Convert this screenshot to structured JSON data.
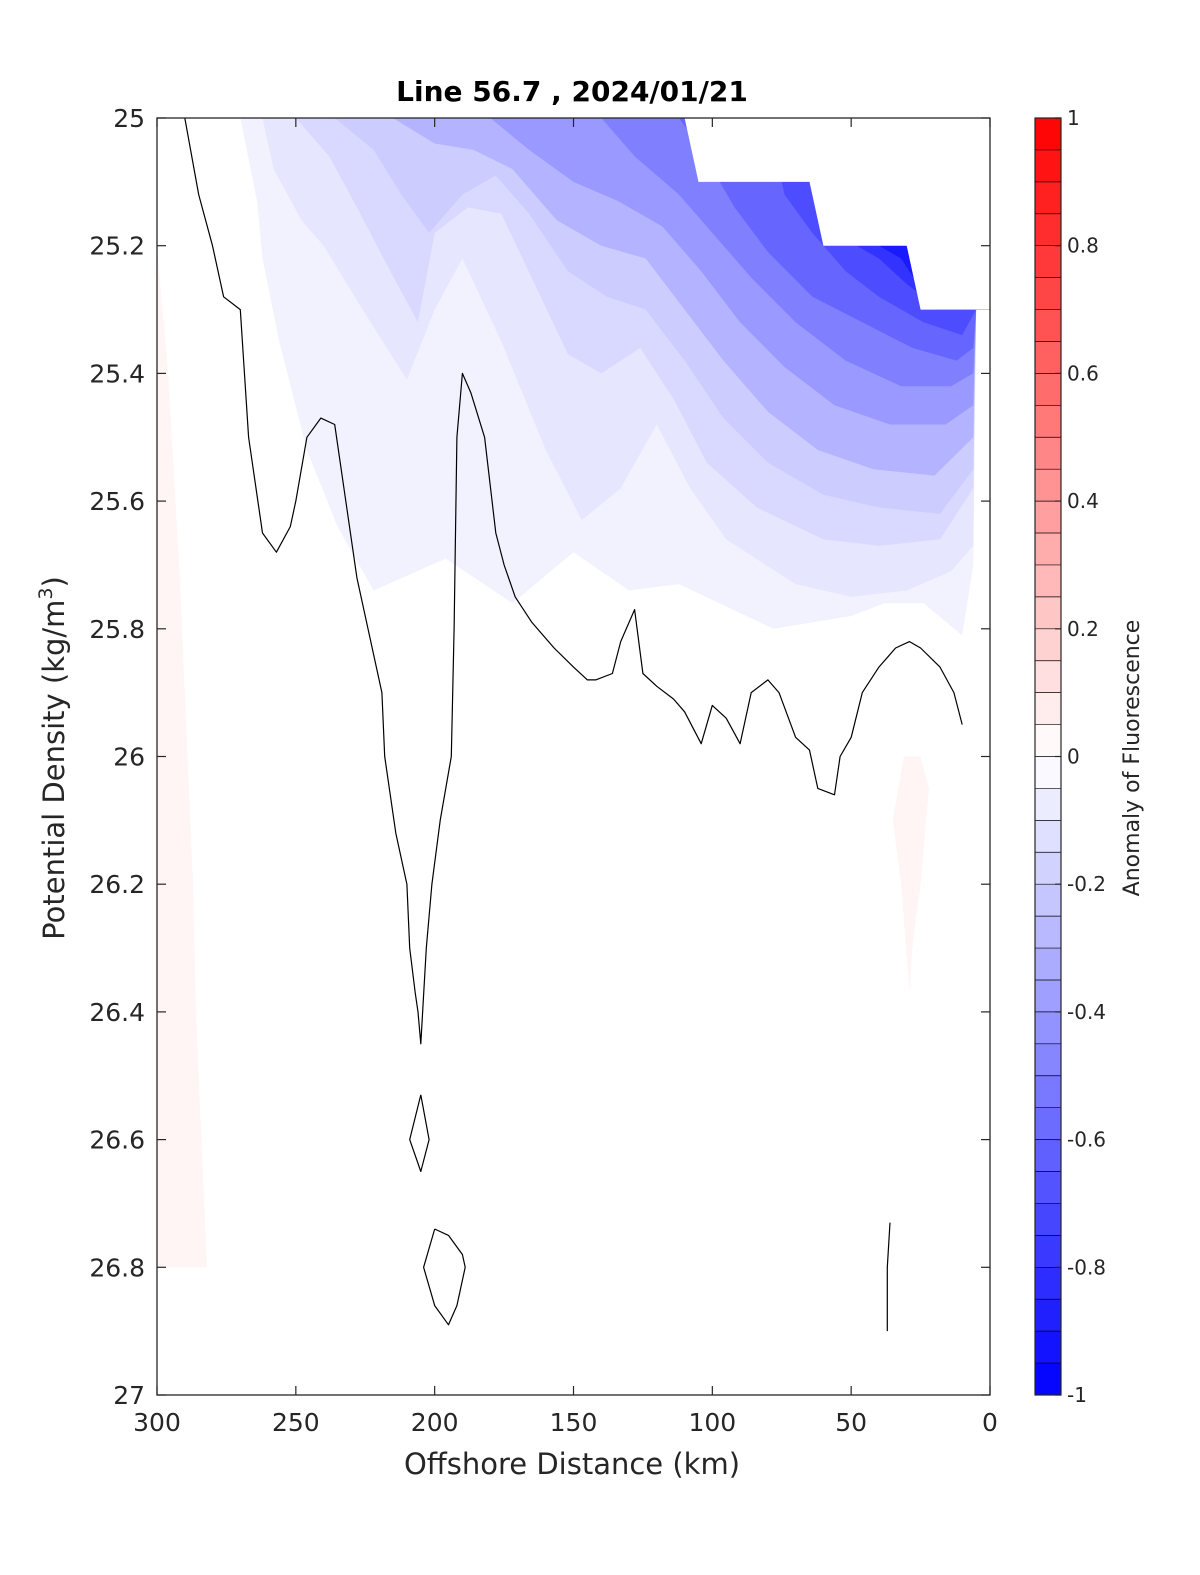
{
  "chart_data": {
    "type": "contour",
    "title": "Line 56.7 , 2024/01/21",
    "xlabel": "Offshore Distance (km)",
    "ylabel_main": "Potential Density (kg/m",
    "ylabel_sup": "3",
    "ylabel_close": ")",
    "colorbar_label": "Anomaly of Fluorescence",
    "xlim": [
      300,
      0
    ],
    "x_reversed": true,
    "ylim": [
      25,
      27
    ],
    "y_reversed": true,
    "x_ticks": [
      300,
      250,
      200,
      150,
      100,
      50,
      0
    ],
    "x_tick_labels": [
      "300",
      "250",
      "200",
      "150",
      "100",
      "50",
      "0"
    ],
    "y_ticks": [
      25,
      25.2,
      25.4,
      25.6,
      25.8,
      26,
      26.2,
      26.4,
      26.6,
      26.8,
      27
    ],
    "y_tick_labels": [
      "25",
      "25.2",
      "25.4",
      "25.6",
      "25.8",
      "26",
      "26.2",
      "26.4",
      "26.6",
      "26.8",
      "27"
    ],
    "colorbar": {
      "range": [
        -1,
        1
      ],
      "levels": 40,
      "ticks": [
        1,
        0.8,
        0.6,
        0.4,
        0.2,
        0,
        -0.2,
        -0.4,
        -0.6,
        -0.8,
        -1
      ],
      "tick_labels": [
        "1",
        "0.8",
        "0.6",
        "0.4",
        "0.2",
        "0",
        "-0.2",
        "-0.4",
        "-0.6",
        "-0.8",
        "-1"
      ],
      "colors": {
        "low": "#0000ff",
        "mid": "#ffffff",
        "high": "#ff0000"
      }
    },
    "no_data_region": {
      "boundary": [
        [
          110,
          25.0
        ],
        [
          105,
          25.1
        ],
        [
          65,
          25.1
        ],
        [
          60,
          25.2
        ],
        [
          30,
          25.2
        ],
        [
          25,
          25.3
        ],
        [
          5,
          25.3
        ],
        [
          0,
          25.3
        ],
        [
          0,
          25.0
        ]
      ]
    },
    "negative_fill_layers": [
      {
        "value": -0.05,
        "boundary": [
          [
            270,
            25.0
          ],
          [
            264,
            25.13
          ],
          [
            262,
            25.22
          ],
          [
            256,
            25.35
          ],
          [
            246,
            25.52
          ],
          [
            235,
            25.64
          ],
          [
            222,
            25.74
          ],
          [
            196,
            25.69
          ],
          [
            172,
            25.76
          ],
          [
            150,
            25.68
          ],
          [
            130,
            25.74
          ],
          [
            112,
            25.73
          ],
          [
            78,
            25.8
          ],
          [
            50,
            25.78
          ],
          [
            38,
            25.76
          ],
          [
            24,
            25.76
          ],
          [
            10,
            25.81
          ],
          [
            6,
            25.7
          ],
          [
            5,
            25.3
          ],
          [
            0,
            25.3
          ],
          [
            0,
            25.0
          ]
        ]
      },
      {
        "value": -0.1,
        "boundary": [
          [
            262,
            25.0
          ],
          [
            258,
            25.08
          ],
          [
            248,
            25.16
          ],
          [
            240,
            25.2
          ],
          [
            226,
            25.3
          ],
          [
            210,
            25.41
          ],
          [
            200,
            25.3
          ],
          [
            190,
            25.22
          ],
          [
            176,
            25.35
          ],
          [
            160,
            25.52
          ],
          [
            147,
            25.63
          ],
          [
            133,
            25.58
          ],
          [
            120,
            25.48
          ],
          [
            108,
            25.58
          ],
          [
            95,
            25.66
          ],
          [
            70,
            25.73
          ],
          [
            50,
            25.75
          ],
          [
            30,
            25.74
          ],
          [
            14,
            25.71
          ],
          [
            6,
            25.67
          ],
          [
            5,
            25.3
          ],
          [
            0,
            25.3
          ],
          [
            0,
            25.0
          ]
        ]
      },
      {
        "value": -0.15,
        "boundary": [
          [
            250,
            25.0
          ],
          [
            238,
            25.06
          ],
          [
            228,
            25.14
          ],
          [
            216,
            25.24
          ],
          [
            206,
            25.32
          ],
          [
            200,
            25.18
          ],
          [
            188,
            25.14
          ],
          [
            176,
            25.15
          ],
          [
            164,
            25.26
          ],
          [
            152,
            25.37
          ],
          [
            140,
            25.4
          ],
          [
            126,
            25.36
          ],
          [
            114,
            25.44
          ],
          [
            102,
            25.54
          ],
          [
            84,
            25.61
          ],
          [
            60,
            25.66
          ],
          [
            40,
            25.67
          ],
          [
            18,
            25.66
          ],
          [
            6,
            25.58
          ],
          [
            5,
            25.3
          ],
          [
            0,
            25.3
          ],
          [
            0,
            25.0
          ]
        ]
      },
      {
        "value": -0.2,
        "boundary": [
          [
            236,
            25.0
          ],
          [
            222,
            25.05
          ],
          [
            212,
            25.12
          ],
          [
            202,
            25.18
          ],
          [
            190,
            25.12
          ],
          [
            178,
            25.09
          ],
          [
            166,
            25.15
          ],
          [
            152,
            25.24
          ],
          [
            138,
            25.28
          ],
          [
            124,
            25.3
          ],
          [
            110,
            25.38
          ],
          [
            96,
            25.47
          ],
          [
            80,
            25.54
          ],
          [
            60,
            25.59
          ],
          [
            40,
            25.61
          ],
          [
            18,
            25.62
          ],
          [
            6,
            25.55
          ],
          [
            5,
            25.3
          ],
          [
            0,
            25.3
          ],
          [
            0,
            25.0
          ]
        ]
      },
      {
        "value": -0.3,
        "boundary": [
          [
            215,
            25.0
          ],
          [
            200,
            25.04
          ],
          [
            186,
            25.05
          ],
          [
            172,
            25.08
          ],
          [
            156,
            25.16
          ],
          [
            140,
            25.2
          ],
          [
            124,
            25.22
          ],
          [
            110,
            25.3
          ],
          [
            96,
            25.38
          ],
          [
            80,
            25.46
          ],
          [
            62,
            25.52
          ],
          [
            42,
            25.55
          ],
          [
            20,
            25.56
          ],
          [
            6,
            25.5
          ],
          [
            5,
            25.3
          ],
          [
            0,
            25.3
          ],
          [
            0,
            25.0
          ]
        ]
      },
      {
        "value": -0.4,
        "boundary": [
          [
            180,
            25.0
          ],
          [
            166,
            25.05
          ],
          [
            150,
            25.1
          ],
          [
            134,
            25.13
          ],
          [
            118,
            25.17
          ],
          [
            104,
            25.24
          ],
          [
            90,
            25.32
          ],
          [
            74,
            25.39
          ],
          [
            56,
            25.45
          ],
          [
            36,
            25.48
          ],
          [
            16,
            25.48
          ],
          [
            6,
            25.45
          ],
          [
            5,
            25.3
          ],
          [
            0,
            25.3
          ],
          [
            0,
            25.0
          ]
        ]
      },
      {
        "value": -0.5,
        "boundary": [
          [
            140,
            25.0
          ],
          [
            128,
            25.06
          ],
          [
            112,
            25.12
          ],
          [
            100,
            25.18
          ],
          [
            86,
            25.25
          ],
          [
            70,
            25.32
          ],
          [
            52,
            25.38
          ],
          [
            32,
            25.42
          ],
          [
            14,
            25.42
          ],
          [
            6,
            25.4
          ],
          [
            5,
            25.3
          ],
          [
            0,
            25.3
          ],
          [
            0,
            25.0
          ]
        ]
      },
      {
        "value": -0.6,
        "boundary": [
          [
            112,
            25.0
          ],
          [
            104,
            25.05
          ],
          [
            92,
            25.14
          ],
          [
            80,
            25.21
          ],
          [
            64,
            25.28
          ],
          [
            46,
            25.32
          ],
          [
            28,
            25.36
          ],
          [
            12,
            25.38
          ],
          [
            6,
            25.36
          ],
          [
            5,
            25.3
          ],
          [
            0,
            25.3
          ],
          [
            0,
            25.0
          ]
        ]
      },
      {
        "value": -0.7,
        "boundary": [
          [
            80,
            25.0
          ],
          [
            74,
            25.12
          ],
          [
            64,
            25.18
          ],
          [
            52,
            25.24
          ],
          [
            40,
            25.28
          ],
          [
            24,
            25.32
          ],
          [
            10,
            25.34
          ],
          [
            5,
            25.3
          ],
          [
            0,
            25.3
          ],
          [
            0,
            25.0
          ]
        ]
      },
      {
        "value": -0.8,
        "boundary": [
          [
            56,
            25.0
          ],
          [
            48,
            25.2
          ],
          [
            40,
            25.22
          ],
          [
            30,
            25.26
          ],
          [
            18,
            25.3
          ],
          [
            5,
            25.3
          ],
          [
            0,
            25.3
          ],
          [
            0,
            25.0
          ]
        ]
      },
      {
        "value": -0.9,
        "boundary": [
          [
            46,
            25.0
          ],
          [
            40,
            25.2
          ],
          [
            32,
            25.22
          ],
          [
            26,
            25.26
          ],
          [
            20,
            25.3
          ],
          [
            0,
            25.3
          ],
          [
            0,
            25.0
          ]
        ]
      }
    ],
    "positive_fill_layers": [
      {
        "value": 0.04,
        "boundary": [
          [
            300,
            25.2
          ],
          [
            296,
            25.4
          ],
          [
            292,
            25.7
          ],
          [
            289,
            26.0
          ],
          [
            287,
            26.2
          ],
          [
            286,
            26.4
          ],
          [
            284,
            26.6
          ],
          [
            283,
            26.7
          ],
          [
            282,
            26.8
          ],
          [
            300,
            26.8
          ]
        ]
      },
      {
        "value": 0.04,
        "boundary": [
          [
            31,
            26.0
          ],
          [
            25,
            26.0
          ],
          [
            22,
            26.05
          ],
          [
            25,
            26.2
          ],
          [
            28,
            26.3
          ],
          [
            29,
            26.37
          ],
          [
            32,
            26.2
          ],
          [
            35,
            26.1
          ]
        ]
      }
    ],
    "zero_contours": [
      {
        "points": [
          [
            290,
            25.0
          ],
          [
            285,
            25.12
          ],
          [
            280,
            25.2
          ],
          [
            276,
            25.28
          ],
          [
            270,
            25.3
          ],
          [
            267,
            25.5
          ],
          [
            262,
            25.65
          ],
          [
            257,
            25.68
          ],
          [
            252,
            25.64
          ],
          [
            250,
            25.6
          ],
          [
            246,
            25.5
          ],
          [
            241,
            25.47
          ],
          [
            236,
            25.48
          ],
          [
            232,
            25.6
          ],
          [
            228,
            25.72
          ],
          [
            224,
            25.8
          ],
          [
            219,
            25.9
          ],
          [
            218,
            26.0
          ],
          [
            214,
            26.12
          ],
          [
            210,
            26.2
          ],
          [
            209,
            26.3
          ],
          [
            207,
            26.37
          ],
          [
            206,
            26.4
          ],
          [
            205,
            26.45
          ],
          [
            203,
            26.3
          ],
          [
            201,
            26.2
          ],
          [
            198,
            26.1
          ],
          [
            194,
            26.0
          ],
          [
            193,
            25.8
          ],
          [
            192,
            25.5
          ],
          [
            190,
            25.4
          ],
          [
            187,
            25.43
          ],
          [
            182,
            25.5
          ],
          [
            178,
            25.65
          ],
          [
            175,
            25.7
          ],
          [
            171,
            25.75
          ],
          [
            165,
            25.79
          ],
          [
            157,
            25.83
          ],
          [
            150,
            25.86
          ],
          [
            145,
            25.88
          ],
          [
            142,
            25.88
          ],
          [
            136,
            25.87
          ],
          [
            133,
            25.82
          ],
          [
            128,
            25.77
          ],
          [
            125,
            25.87
          ],
          [
            120,
            25.89
          ],
          [
            114,
            25.91
          ],
          [
            110,
            25.93
          ],
          [
            104,
            25.98
          ],
          [
            100,
            25.92
          ],
          [
            95,
            25.94
          ],
          [
            90,
            25.98
          ],
          [
            86,
            25.9
          ],
          [
            80,
            25.88
          ],
          [
            76,
            25.9
          ],
          [
            70,
            25.97
          ],
          [
            65,
            25.99
          ],
          [
            62,
            26.05
          ],
          [
            56,
            26.06
          ],
          [
            54,
            26.0
          ],
          [
            50,
            25.97
          ],
          [
            46,
            25.9
          ],
          [
            40,
            25.86
          ],
          [
            34,
            25.83
          ],
          [
            29,
            25.82
          ],
          [
            25,
            25.83
          ],
          [
            18,
            25.86
          ],
          [
            13,
            25.9
          ],
          [
            10,
            25.95
          ]
        ]
      },
      {
        "points": [
          [
            205,
            26.53
          ],
          [
            202,
            26.6
          ],
          [
            205,
            26.65
          ],
          [
            209,
            26.6
          ],
          [
            205,
            26.53
          ]
        ]
      },
      {
        "points": [
          [
            200,
            26.74
          ],
          [
            195,
            26.75
          ],
          [
            190,
            26.78
          ],
          [
            189,
            26.8
          ],
          [
            192,
            26.86
          ],
          [
            195,
            26.89
          ],
          [
            200,
            26.86
          ],
          [
            204,
            26.8
          ],
          [
            200,
            26.74
          ]
        ]
      },
      {
        "points": [
          [
            36,
            26.73
          ],
          [
            37,
            26.8
          ],
          [
            37,
            26.9
          ]
        ]
      }
    ]
  }
}
